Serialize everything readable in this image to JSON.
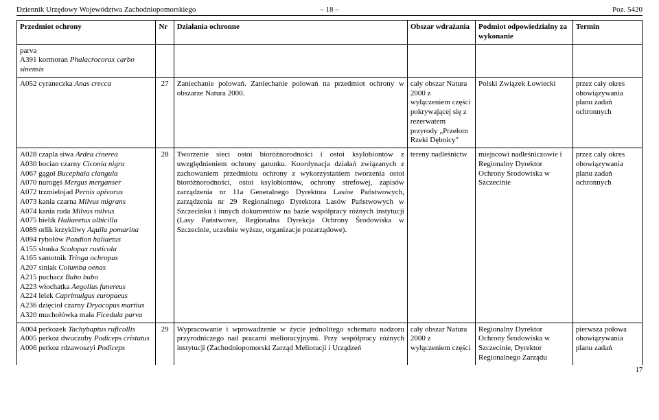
{
  "header": {
    "left": "Dziennik Urzędowy Województwa Zachodniopomorskiego",
    "mid": "– 18 –",
    "right": "Poz. 5420"
  },
  "columns": {
    "c1": "Przedmiot ochrony",
    "c2": "Nr",
    "c3": "Działania ochronne",
    "c4": "Obszar wdrażania",
    "c5": "Podmiot odpowiedzialny za wykonanie",
    "c6": "Termin"
  },
  "row_carry": {
    "subject_plain": "parva",
    "subject_line2_pre": "A391 kormoran ",
    "subject_line2_it": "Phalacrocorax carbo sinensis"
  },
  "row27": {
    "subject_pre": "A052 cyraneczka ",
    "subject_it": "Anas crecca",
    "nr": "27",
    "action": "Zaniechanie polowań. Zaniechanie polowań na przedmiot ochrony w obszarze Natura 2000.",
    "area": "cały obszar Natura 2000 z wyłączeniem części pokrywającej się z rezerwatem przyrody „Przełom Rzeki Dębnicy\"",
    "resp": "Polski Związek Łowiecki",
    "term": "przez cały okres obowiązywania planu zadań ochronnych"
  },
  "row28": {
    "species": [
      {
        "pre": "A028 czapla siwa ",
        "it": "Ardea cinerea"
      },
      {
        "pre": "A030 bocian czarny ",
        "it": "Ciconia nigra"
      },
      {
        "pre": "A067 gągoł ",
        "it": "Bucephala clangula"
      },
      {
        "pre": "A070 nurogęś ",
        "it": "Mergus merganser"
      },
      {
        "pre": "A072 trzmielojad ",
        "it": "Pernis apivorus"
      },
      {
        "pre": "A073 kania czarna ",
        "it": "Milvus migrans"
      },
      {
        "pre": "A074 kania ruda ",
        "it": "Milvus milvus"
      },
      {
        "pre": "A075 bielik ",
        "it": "Haliaeetus albicilla"
      },
      {
        "pre": "A089 orlik krzykliwy ",
        "it": "Aquila pomarina"
      },
      {
        "pre": "A094 rybołów ",
        "it": "Pandion haliaetus"
      },
      {
        "pre": "A155 słonka ",
        "it": "Scolopax rusticola"
      },
      {
        "pre": "A165 samotnik ",
        "it": "Tringa ochropus"
      },
      {
        "pre": "A207 siniak ",
        "it": "Columba oenas"
      },
      {
        "pre": "A215 puchacz ",
        "it": "Bubo bubo"
      },
      {
        "pre": "A223 włochatka ",
        "it": "Aegolius funereus"
      },
      {
        "pre": "A224 lelek ",
        "it": "Caprimulgus europaeus"
      },
      {
        "pre": "A236 dzięcioł czarny ",
        "it": "Dryocopus martius"
      },
      {
        "pre": "A320 muchołówka mała ",
        "it": "Ficedula parva"
      }
    ],
    "nr": "28",
    "action": "Tworzenie sieci ostoi bioróżnorodności i ostoi ksylobiontów z uwzględnieniem ochrony gatunku. Koordynacja działań związanych z zachowaniem przedmiotu ochrony z wykorzystaniem tworzenia ostoi bioróżnorodności, ostoi ksylobiontów, ochrony strefowej, zapisów zarządzenia nr 11a Generalnego Dyrektora Lasów Państwowych, zarządzenia nr 29 Regionalnego Dyrektora Lasów Państwowych w Szczecinku i innych dokumentów na bazie współpracy różnych instytucji (Lasy Państwowe, Regionalna Dyrekcja Ochrony Środowiska w Szczecinie, uczelnie wyższe, organizacje pozarządowe).",
    "area": "tereny nadleśnictw",
    "resp": "miejscowi nadleśniczowie i Regionalny Dyrektor Ochrony Środowiska w Szczecinie",
    "term": "przez cały okres obowiązywania planu zadań ochronnych"
  },
  "row29": {
    "species": [
      {
        "pre": "A004 perkozek ",
        "it": "Tachybaptus ruficollis"
      },
      {
        "pre": "A005 perkoz dwuczuby ",
        "it": "Podiceps cristatus"
      },
      {
        "pre": "A006 perkoz rdzawoszyi ",
        "it": "Podiceps"
      }
    ],
    "nr": "29",
    "action": "Wypracowanie i wprowadzenie w życie jednolitego schematu nadzoru przyrodniczego nad pracami melioracyjnymi. Przy współpracy różnych instytucji (Zachodniopomorski Zarząd Melioracji i Urządzeń",
    "area": "cały obszar Natura 2000 z wyłączeniem części",
    "resp": "Regionalny Dyrektor Ochrony Środowiska w Szczecinie, Dyrektor Regionalnego Zarządu",
    "term": "pierwsza połowa obowiązywania planu zadań"
  },
  "pagenum": "17"
}
